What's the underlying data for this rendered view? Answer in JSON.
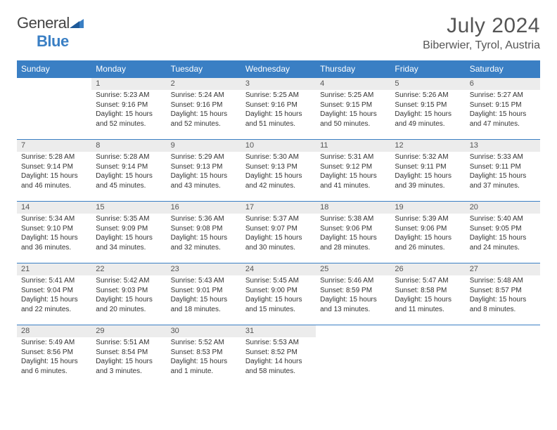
{
  "logo": {
    "text1": "General",
    "text2": "Blue"
  },
  "title": "July 2024",
  "location": "Biberwier, Tyrol, Austria",
  "colors": {
    "header_bg": "#3a7fc4",
    "header_border": "#3a7fc4",
    "daynum_bg": "#ececec",
    "text": "#333333",
    "title_text": "#555555"
  },
  "layout": {
    "columns": 7,
    "rows": 5,
    "font_family": "Arial",
    "title_fontsize": 30,
    "location_fontsize": 16,
    "header_fontsize": 12,
    "daynum_fontsize": 11,
    "detail_fontsize": 10
  },
  "weekdays": [
    "Sunday",
    "Monday",
    "Tuesday",
    "Wednesday",
    "Thursday",
    "Friday",
    "Saturday"
  ],
  "weeks": [
    [
      null,
      {
        "n": "1",
        "sr": "5:23 AM",
        "ss": "9:16 PM",
        "dl": "15 hours and 52 minutes."
      },
      {
        "n": "2",
        "sr": "5:24 AM",
        "ss": "9:16 PM",
        "dl": "15 hours and 52 minutes."
      },
      {
        "n": "3",
        "sr": "5:25 AM",
        "ss": "9:16 PM",
        "dl": "15 hours and 51 minutes."
      },
      {
        "n": "4",
        "sr": "5:25 AM",
        "ss": "9:15 PM",
        "dl": "15 hours and 50 minutes."
      },
      {
        "n": "5",
        "sr": "5:26 AM",
        "ss": "9:15 PM",
        "dl": "15 hours and 49 minutes."
      },
      {
        "n": "6",
        "sr": "5:27 AM",
        "ss": "9:15 PM",
        "dl": "15 hours and 47 minutes."
      }
    ],
    [
      {
        "n": "7",
        "sr": "5:28 AM",
        "ss": "9:14 PM",
        "dl": "15 hours and 46 minutes."
      },
      {
        "n": "8",
        "sr": "5:28 AM",
        "ss": "9:14 PM",
        "dl": "15 hours and 45 minutes."
      },
      {
        "n": "9",
        "sr": "5:29 AM",
        "ss": "9:13 PM",
        "dl": "15 hours and 43 minutes."
      },
      {
        "n": "10",
        "sr": "5:30 AM",
        "ss": "9:13 PM",
        "dl": "15 hours and 42 minutes."
      },
      {
        "n": "11",
        "sr": "5:31 AM",
        "ss": "9:12 PM",
        "dl": "15 hours and 41 minutes."
      },
      {
        "n": "12",
        "sr": "5:32 AM",
        "ss": "9:11 PM",
        "dl": "15 hours and 39 minutes."
      },
      {
        "n": "13",
        "sr": "5:33 AM",
        "ss": "9:11 PM",
        "dl": "15 hours and 37 minutes."
      }
    ],
    [
      {
        "n": "14",
        "sr": "5:34 AM",
        "ss": "9:10 PM",
        "dl": "15 hours and 36 minutes."
      },
      {
        "n": "15",
        "sr": "5:35 AM",
        "ss": "9:09 PM",
        "dl": "15 hours and 34 minutes."
      },
      {
        "n": "16",
        "sr": "5:36 AM",
        "ss": "9:08 PM",
        "dl": "15 hours and 32 minutes."
      },
      {
        "n": "17",
        "sr": "5:37 AM",
        "ss": "9:07 PM",
        "dl": "15 hours and 30 minutes."
      },
      {
        "n": "18",
        "sr": "5:38 AM",
        "ss": "9:06 PM",
        "dl": "15 hours and 28 minutes."
      },
      {
        "n": "19",
        "sr": "5:39 AM",
        "ss": "9:06 PM",
        "dl": "15 hours and 26 minutes."
      },
      {
        "n": "20",
        "sr": "5:40 AM",
        "ss": "9:05 PM",
        "dl": "15 hours and 24 minutes."
      }
    ],
    [
      {
        "n": "21",
        "sr": "5:41 AM",
        "ss": "9:04 PM",
        "dl": "15 hours and 22 minutes."
      },
      {
        "n": "22",
        "sr": "5:42 AM",
        "ss": "9:03 PM",
        "dl": "15 hours and 20 minutes."
      },
      {
        "n": "23",
        "sr": "5:43 AM",
        "ss": "9:01 PM",
        "dl": "15 hours and 18 minutes."
      },
      {
        "n": "24",
        "sr": "5:45 AM",
        "ss": "9:00 PM",
        "dl": "15 hours and 15 minutes."
      },
      {
        "n": "25",
        "sr": "5:46 AM",
        "ss": "8:59 PM",
        "dl": "15 hours and 13 minutes."
      },
      {
        "n": "26",
        "sr": "5:47 AM",
        "ss": "8:58 PM",
        "dl": "15 hours and 11 minutes."
      },
      {
        "n": "27",
        "sr": "5:48 AM",
        "ss": "8:57 PM",
        "dl": "15 hours and 8 minutes."
      }
    ],
    [
      {
        "n": "28",
        "sr": "5:49 AM",
        "ss": "8:56 PM",
        "dl": "15 hours and 6 minutes."
      },
      {
        "n": "29",
        "sr": "5:51 AM",
        "ss": "8:54 PM",
        "dl": "15 hours and 3 minutes."
      },
      {
        "n": "30",
        "sr": "5:52 AM",
        "ss": "8:53 PM",
        "dl": "15 hours and 1 minute."
      },
      {
        "n": "31",
        "sr": "5:53 AM",
        "ss": "8:52 PM",
        "dl": "14 hours and 58 minutes."
      },
      null,
      null,
      null
    ]
  ],
  "labels": {
    "sunrise": "Sunrise:",
    "sunset": "Sunset:",
    "daylight": "Daylight:"
  }
}
